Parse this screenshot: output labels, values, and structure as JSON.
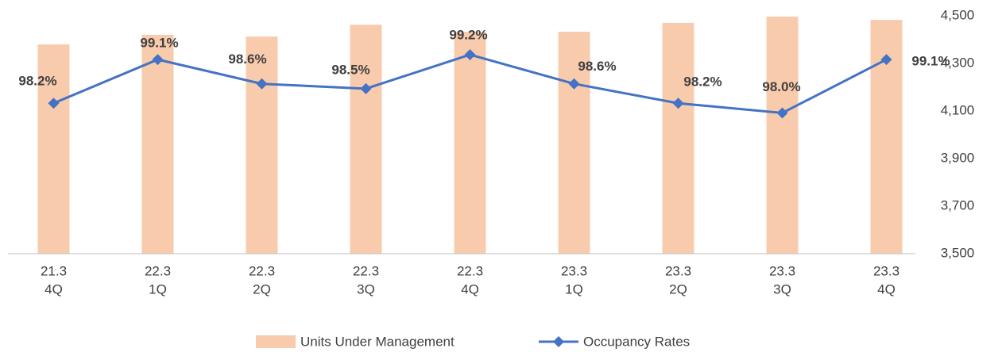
{
  "chart_data": {
    "type": "bar_line",
    "categories": [
      [
        "21.3",
        "4Q"
      ],
      [
        "22.3",
        "1Q"
      ],
      [
        "22.3",
        "2Q"
      ],
      [
        "22.3",
        "3Q"
      ],
      [
        "22.3",
        "4Q"
      ],
      [
        "23.3",
        "1Q"
      ],
      [
        "23.3",
        "2Q"
      ],
      [
        "23.3",
        "3Q"
      ],
      [
        "23.3",
        "4Q"
      ]
    ],
    "series": [
      {
        "name": "Units Under Management",
        "type": "bar",
        "axis": "y2",
        "color": "#f8cbad",
        "values": [
          4380,
          4420,
          4413,
          4463,
          4433,
          4433,
          4470,
          4497,
          4483
        ]
      },
      {
        "name": "Occupancy Rates",
        "type": "line",
        "color": "#4472c4",
        "values": [
          98.2,
          99.1,
          98.6,
          98.5,
          99.2,
          98.6,
          98.2,
          98.0,
          99.1
        ],
        "value_labels": [
          "98.2%",
          "99.1%",
          "98.6%",
          "98.5%",
          "99.2%",
          "98.6%",
          "98.2%",
          "98.0%",
          "99.1%"
        ]
      }
    ],
    "ylim": [
      95.1,
      100
    ],
    "y2lim": [
      3500,
      4500
    ],
    "y2ticks": [
      {
        "value": 3500,
        "label": "3,500"
      },
      {
        "value": 3700,
        "label": "3,700"
      },
      {
        "value": 3900,
        "label": "3,900"
      },
      {
        "value": 4100,
        "label": "4,100"
      },
      {
        "value": 4300,
        "label": "4,300"
      },
      {
        "value": 4500,
        "label": "4,500"
      }
    ],
    "legend": "bottom"
  }
}
